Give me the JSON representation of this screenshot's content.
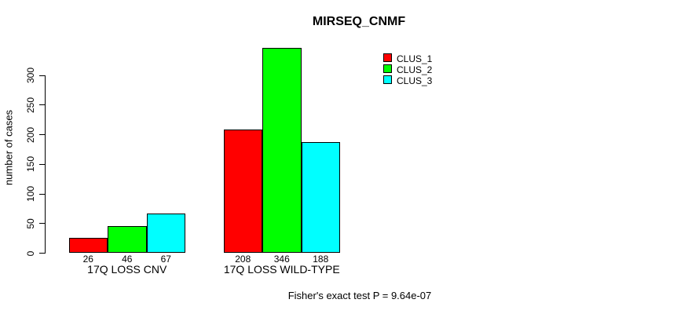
{
  "chart_data": {
    "type": "bar",
    "title": "MIRSEQ_CNMF",
    "ylabel": "number of cases",
    "xlabel": "",
    "categories": [
      "17Q LOSS CNV",
      "17Q LOSS WILD-TYPE"
    ],
    "series": [
      {
        "name": "CLUS_1",
        "color": "#FF0000",
        "values": [
          26,
          208
        ]
      },
      {
        "name": "CLUS_2",
        "color": "#00FF00",
        "values": [
          46,
          346
        ]
      },
      {
        "name": "CLUS_3",
        "color": "#00FFFF",
        "values": [
          67,
          188
        ]
      }
    ],
    "bar_value_labels": [
      [
        26,
        46,
        67
      ],
      [
        208,
        346,
        188
      ]
    ],
    "yticks": [
      0,
      50,
      100,
      150,
      200,
      250,
      300
    ],
    "ylim": [
      0,
      346
    ],
    "grid": false,
    "legend_position": "top-right",
    "bar_border_color": "#000000",
    "background_color": "#FFFFFF",
    "annotation": "Fisher's exact test P = 9.64e-07"
  }
}
